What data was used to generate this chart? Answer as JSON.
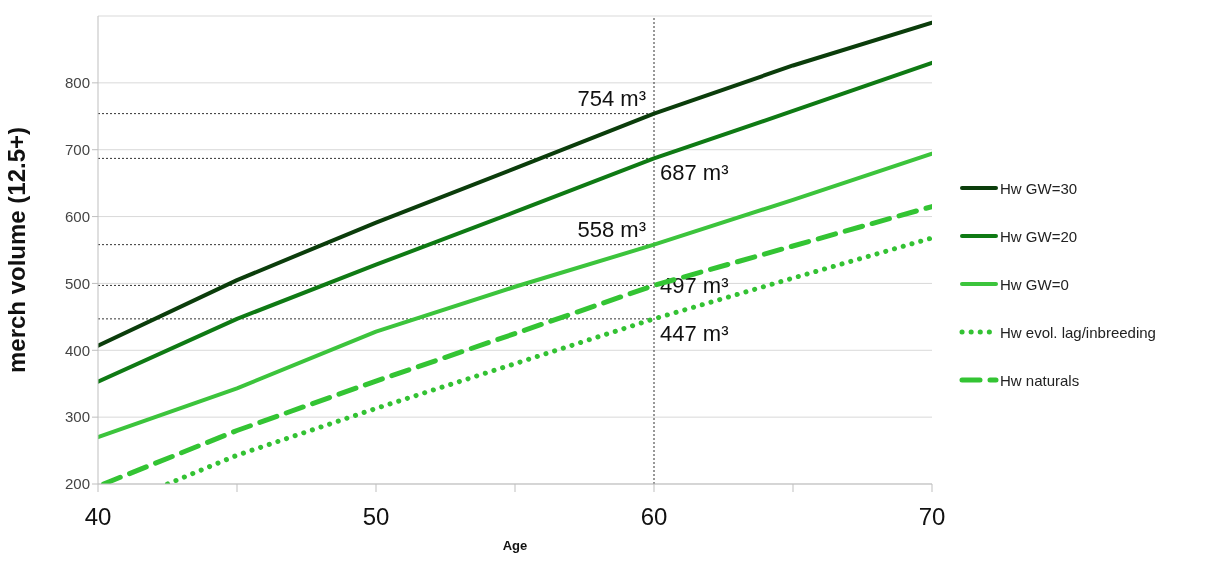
{
  "chart_data": {
    "type": "line",
    "xlabel": "Age",
    "ylabel": "merch volume (12.5+)",
    "xlim": [
      40,
      70
    ],
    "xticks": [
      40,
      {
        "value": 45,
        "label": null
      },
      50,
      {
        "value": 55,
        "label": null
      },
      60,
      {
        "value": 65,
        "label": null
      },
      70
    ],
    "ylim": [
      200,
      900
    ],
    "yticks": [
      200,
      300,
      400,
      500,
      600,
      700,
      800
    ],
    "grid": "y",
    "legend": "right",
    "marker": "none",
    "series": [
      {
        "name": "Hw GW=30",
        "color": "#0b3d0b",
        "line_style": "solid",
        "x": [
          40,
          45,
          50,
          55,
          60,
          65,
          70
        ],
        "values": [
          407,
          505,
          591,
          672,
          754,
          826,
          890
        ]
      },
      {
        "name": "Hw GW=20",
        "color": "#0f7a14",
        "line_style": "solid",
        "x": [
          40,
          45,
          50,
          55,
          60,
          65,
          70
        ],
        "values": [
          353,
          447,
          528,
          607,
          687,
          758,
          830
        ]
      },
      {
        "name": "Hw GW=0",
        "color": "#3cc43c",
        "line_style": "solid",
        "x": [
          40,
          45,
          50,
          55,
          60,
          65,
          70
        ],
        "values": [
          270,
          343,
          428,
          495,
          558,
          625,
          694
        ]
      },
      {
        "name": "Hw evol. lag/inbreeding",
        "color": "#33c233",
        "line_style": "dotted",
        "x": [
          42.5,
          45,
          50,
          55,
          60,
          65,
          70
        ],
        "values": [
          200,
          243,
          313,
          380,
          447,
          508,
          568
        ]
      },
      {
        "name": "Hw naturals",
        "color": "#33c433",
        "line_style": "dashed",
        "x": [
          40.2,
          45,
          50,
          55,
          60,
          65,
          70
        ],
        "values": [
          200,
          280,
          354,
          425,
          497,
          556,
          615
        ]
      }
    ],
    "ref_lines": [
      {
        "axis": "x",
        "value": 60,
        "line_style": "dotted",
        "color": "#333333"
      },
      {
        "axis": "y",
        "value": 754,
        "line_style": "dotted",
        "color": "#333333",
        "label": "754 m³"
      },
      {
        "axis": "y",
        "value": 687,
        "line_style": "dotted",
        "color": "#333333",
        "label": "687 m³"
      },
      {
        "axis": "y",
        "value": 558,
        "line_style": "dotted",
        "color": "#333333",
        "label": "558 m³"
      },
      {
        "axis": "y",
        "value": 497,
        "line_style": "dotted",
        "color": "#333333",
        "label": "497 m³"
      },
      {
        "axis": "y",
        "value": 447,
        "line_style": "dotted",
        "color": "#333333",
        "label": "447 m³"
      }
    ]
  }
}
